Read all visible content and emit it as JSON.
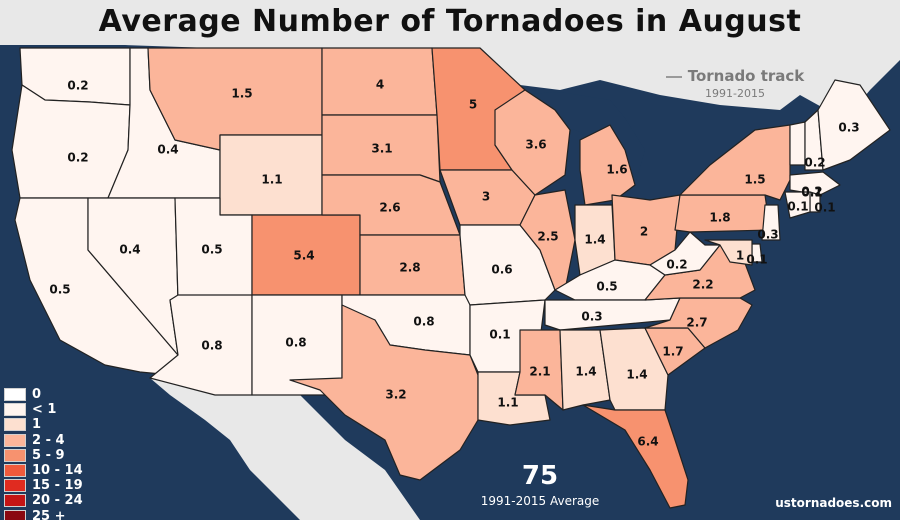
{
  "title": "Average Number of Tornadoes in August",
  "track_note": {
    "label": "Tornado track",
    "years": "1991-2015"
  },
  "legend": [
    {
      "label": "0",
      "color": "#ffffff"
    },
    {
      "label": "< 1",
      "color": "#fff5f0"
    },
    {
      "label": "1",
      "color": "#fde0d0"
    },
    {
      "label": "2 - 4",
      "color": "#fbb59a"
    },
    {
      "label": "5 - 9",
      "color": "#f7926f"
    },
    {
      "label": "10 - 14",
      "color": "#f05a3c"
    },
    {
      "label": "15 - 19",
      "color": "#e02b20"
    },
    {
      "label": "20 - 24",
      "color": "#c41414"
    },
    {
      "label": "25 +",
      "color": "#8a0810"
    }
  ],
  "average": {
    "value": "75",
    "label": "1991-2015 Average"
  },
  "credit": "ustornadoes.com",
  "colors": {
    "ocean": "#1f3a5c",
    "foreign_land": "#e8e8e8",
    "border": "#222222"
  },
  "states": [
    {
      "id": "WA",
      "value": "0.2",
      "tier": 1
    },
    {
      "id": "OR",
      "value": "0.2",
      "tier": 1
    },
    {
      "id": "CA",
      "value": "0.5",
      "tier": 1
    },
    {
      "id": "ID",
      "value": "0.4",
      "tier": 1
    },
    {
      "id": "NV",
      "value": "0.4",
      "tier": 1
    },
    {
      "id": "MT",
      "value": "1.5",
      "tier": 3
    },
    {
      "id": "WY",
      "value": "1.1",
      "tier": 2
    },
    {
      "id": "UT",
      "value": "0.5",
      "tier": 1
    },
    {
      "id": "AZ",
      "value": "0.8",
      "tier": 1
    },
    {
      "id": "CO",
      "value": "5.4",
      "tier": 4
    },
    {
      "id": "NM",
      "value": "0.8",
      "tier": 1
    },
    {
      "id": "ND",
      "value": "4",
      "tier": 3
    },
    {
      "id": "SD",
      "value": "3.1",
      "tier": 3
    },
    {
      "id": "NE",
      "value": "2.6",
      "tier": 3
    },
    {
      "id": "KS",
      "value": "2.8",
      "tier": 3
    },
    {
      "id": "OK",
      "value": "0.8",
      "tier": 1
    },
    {
      "id": "TX",
      "value": "3.2",
      "tier": 3
    },
    {
      "id": "MN",
      "value": "5",
      "tier": 4
    },
    {
      "id": "IA",
      "value": "3",
      "tier": 3
    },
    {
      "id": "MO",
      "value": "0.6",
      "tier": 1
    },
    {
      "id": "AR",
      "value": "0.1",
      "tier": 1
    },
    {
      "id": "LA",
      "value": "1.1",
      "tier": 2
    },
    {
      "id": "WI",
      "value": "3.6",
      "tier": 3
    },
    {
      "id": "IL",
      "value": "2.5",
      "tier": 3
    },
    {
      "id": "MI",
      "value": "1.6",
      "tier": 3
    },
    {
      "id": "IN",
      "value": "1.4",
      "tier": 2
    },
    {
      "id": "OH",
      "value": "2",
      "tier": 3
    },
    {
      "id": "KY",
      "value": "0.5",
      "tier": 1
    },
    {
      "id": "TN",
      "value": "0.3",
      "tier": 1
    },
    {
      "id": "MS",
      "value": "2.1",
      "tier": 3
    },
    {
      "id": "AL",
      "value": "1.4",
      "tier": 2
    },
    {
      "id": "GA",
      "value": "1.4",
      "tier": 2
    },
    {
      "id": "FL",
      "value": "6.4",
      "tier": 4
    },
    {
      "id": "SC",
      "value": "1.7",
      "tier": 3
    },
    {
      "id": "NC",
      "value": "2.7",
      "tier": 3
    },
    {
      "id": "VA",
      "value": "2.2",
      "tier": 3
    },
    {
      "id": "WV",
      "value": "0.2",
      "tier": 1
    },
    {
      "id": "PA",
      "value": "1.8",
      "tier": 3
    },
    {
      "id": "NY",
      "value": "1.5",
      "tier": 3
    },
    {
      "id": "VT",
      "value": "0.2",
      "tier": 1
    },
    {
      "id": "NH",
      "value": "0.2",
      "tier": 1
    },
    {
      "id": "ME",
      "value": "0.3",
      "tier": 1
    },
    {
      "id": "MA",
      "value": "0.1",
      "tier": 1
    },
    {
      "id": "RI",
      "value": "0.1",
      "tier": 1
    },
    {
      "id": "CT",
      "value": "0.1",
      "tier": 1
    },
    {
      "id": "NJ",
      "value": "0.3",
      "tier": 1
    },
    {
      "id": "DE",
      "value": "0.1",
      "tier": 1
    },
    {
      "id": "MD",
      "value": "1",
      "tier": 2
    }
  ]
}
